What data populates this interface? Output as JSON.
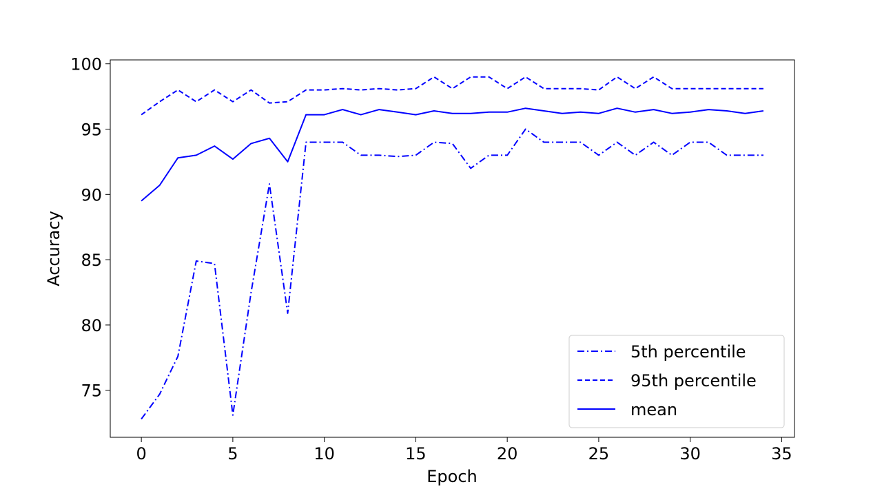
{
  "chart_data": {
    "type": "line",
    "title": "",
    "xlabel": "Epoch",
    "ylabel": "Accuracy",
    "xlim": [
      -1.7,
      35.7
    ],
    "ylim": [
      71.4,
      100.3
    ],
    "xticks": [
      0,
      5,
      10,
      15,
      20,
      25,
      30,
      35
    ],
    "yticks": [
      75,
      80,
      85,
      90,
      95,
      100
    ],
    "grid": false,
    "legend_position": "lower-right",
    "color": "#0000ff",
    "x": [
      0,
      1,
      2,
      3,
      4,
      5,
      6,
      7,
      8,
      9,
      10,
      11,
      12,
      13,
      14,
      15,
      16,
      17,
      18,
      19,
      20,
      21,
      22,
      23,
      24,
      25,
      26,
      27,
      28,
      29,
      30,
      31,
      32,
      33,
      34
    ],
    "series": [
      {
        "name": "5th percentile",
        "style": "dashdot",
        "values": [
          72.8,
          74.7,
          77.6,
          84.9,
          84.7,
          73.1,
          82.5,
          90.8,
          80.9,
          94.0,
          94.0,
          94.0,
          93.0,
          93.0,
          92.9,
          93.0,
          94.0,
          93.9,
          92.0,
          93.0,
          93.0,
          95.0,
          94.0,
          94.0,
          94.0,
          93.0,
          94.0,
          93.0,
          94.0,
          93.0,
          94.0,
          94.0,
          93.0,
          93.0,
          93.0
        ]
      },
      {
        "name": "95th percentile",
        "style": "dashed",
        "values": [
          96.1,
          97.1,
          98.0,
          97.1,
          98.0,
          97.1,
          98.0,
          97.0,
          97.1,
          98.0,
          98.0,
          98.1,
          98.0,
          98.1,
          98.0,
          98.1,
          99.0,
          98.1,
          99.0,
          99.0,
          98.1,
          99.0,
          98.1,
          98.1,
          98.1,
          98.0,
          99.0,
          98.1,
          99.0,
          98.1,
          98.1,
          98.1,
          98.1,
          98.1,
          98.1
        ]
      },
      {
        "name": "mean",
        "style": "solid",
        "values": [
          89.5,
          90.7,
          92.8,
          93.0,
          93.7,
          92.7,
          93.9,
          94.3,
          92.5,
          96.1,
          96.1,
          96.5,
          96.1,
          96.5,
          96.3,
          96.1,
          96.4,
          96.2,
          96.2,
          96.3,
          96.3,
          96.6,
          96.4,
          96.2,
          96.3,
          96.2,
          96.6,
          96.3,
          96.5,
          96.2,
          96.3,
          96.5,
          96.4,
          96.2,
          96.4
        ]
      }
    ]
  }
}
